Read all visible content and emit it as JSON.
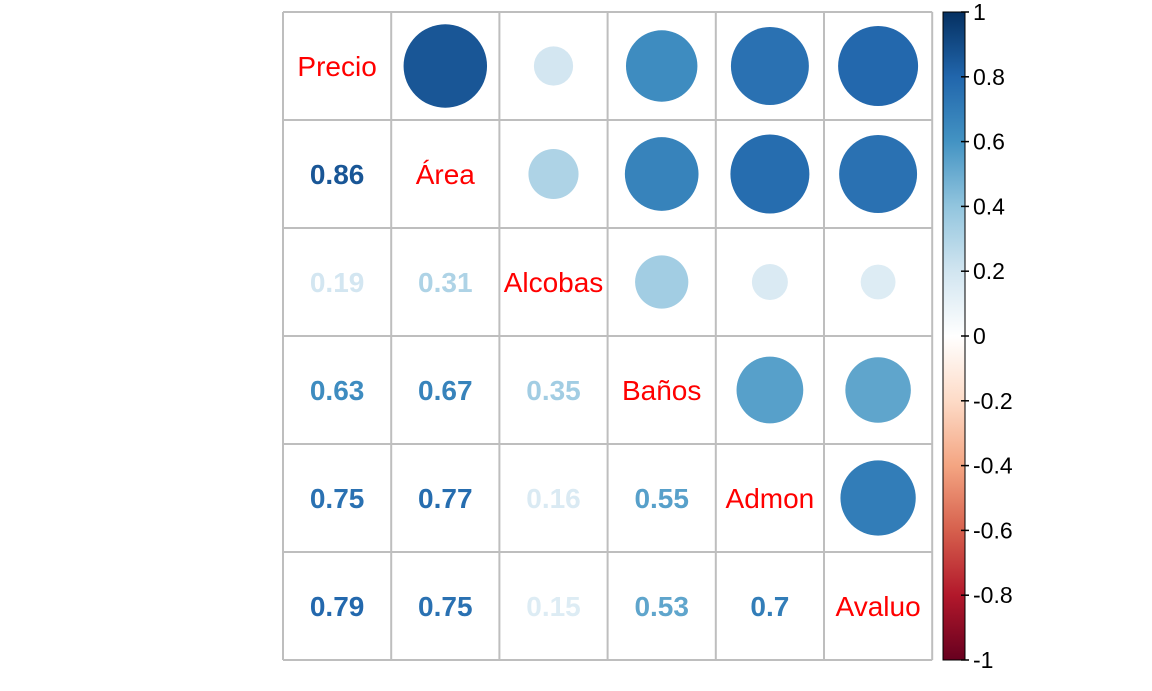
{
  "chart_data": {
    "type": "heatmap",
    "variables": [
      "Precio",
      "Área",
      "Alcobas",
      "Baños",
      "Admon",
      "Avaluo"
    ],
    "matrix": [
      [
        1,
        0.86,
        0.19,
        0.63,
        0.75,
        0.79
      ],
      [
        0.86,
        1,
        0.31,
        0.67,
        0.77,
        0.75
      ],
      [
        0.19,
        0.31,
        1,
        0.35,
        0.16,
        0.15
      ],
      [
        0.63,
        0.67,
        0.35,
        1,
        0.55,
        0.53
      ],
      [
        0.75,
        0.77,
        0.16,
        0.55,
        1,
        0.7
      ],
      [
        0.79,
        0.75,
        0.15,
        0.53,
        0.7,
        1
      ]
    ],
    "lower_triangle_labels": [
      [
        "0.86"
      ],
      [
        "0.19",
        "0.31"
      ],
      [
        "0.63",
        "0.67",
        "0.35"
      ],
      [
        "0.75",
        "0.77",
        "0.16",
        "0.55"
      ],
      [
        "0.79",
        "0.75",
        "0.15",
        "0.53",
        "0.7"
      ]
    ],
    "upper_triangle": "circles",
    "lower_triangle": "numbers",
    "diagonal": "variable names",
    "colorbar": {
      "range": [
        -1,
        1
      ],
      "ticks": [
        "1",
        "0.8",
        "0.6",
        "0.4",
        "0.2",
        "0",
        "-0.2",
        "-0.4",
        "-0.6",
        "-0.8",
        "-1"
      ],
      "placement": "right"
    },
    "colors": {
      "label": "#ff0000",
      "grid": "#bebebe",
      "scale": [
        "#67001f",
        "#b2182b",
        "#d6604d",
        "#f4a582",
        "#fddbc7",
        "#ffffff",
        "#d1e5f0",
        "#92c5de",
        "#4393c3",
        "#2166ac",
        "#053061"
      ]
    }
  }
}
